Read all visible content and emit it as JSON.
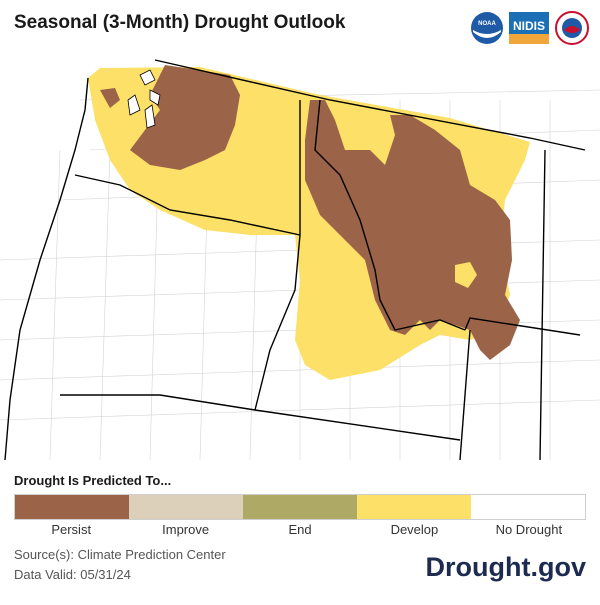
{
  "header": {
    "title": "Seasonal (3-Month) Drought Outlook",
    "logos": [
      {
        "name": "noaa-logo",
        "text": "NOAA"
      },
      {
        "name": "nidis-logo",
        "text": "NIDIS"
      },
      {
        "name": "nws-logo",
        "text": ""
      }
    ]
  },
  "legend": {
    "title": "Drought Is Predicted To...",
    "items": [
      {
        "label": "Persist",
        "color": "#9b6348"
      },
      {
        "label": "Improve",
        "color": "#ddd0bb"
      },
      {
        "label": "End",
        "color": "#aeaa65"
      },
      {
        "label": "Develop",
        "color": "#fde068"
      },
      {
        "label": "No Drought",
        "color": "#ffffff"
      }
    ]
  },
  "footer": {
    "source_line": "Source(s): Climate Prediction Center",
    "valid_line": "Data Valid: 05/31/24",
    "brand": "Drought.gov"
  },
  "map": {
    "colors": {
      "persist": "#9b6348",
      "develop": "#fde068",
      "none": "#ffffff",
      "border": "#000000",
      "county": "#cfcfcf"
    }
  }
}
